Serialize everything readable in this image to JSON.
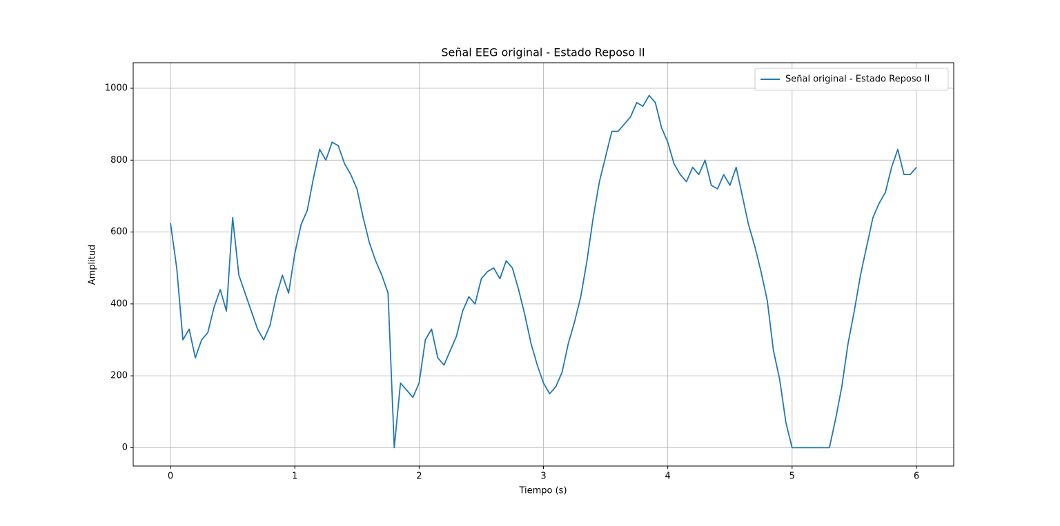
{
  "chart_data": {
    "type": "line",
    "title": "Señal EEG original - Estado Reposo II",
    "xlabel": "Tiempo (s)",
    "ylabel": "Amplitud",
    "x": [
      0,
      0.05,
      0.1,
      0.15,
      0.2,
      0.25,
      0.3,
      0.35,
      0.4,
      0.45,
      0.5,
      0.55,
      0.6,
      0.65,
      0.7,
      0.75,
      0.8,
      0.85,
      0.9,
      0.95,
      1,
      1.05,
      1.1,
      1.15,
      1.2,
      1.25,
      1.3,
      1.35,
      1.4,
      1.45,
      1.5,
      1.55,
      1.6,
      1.65,
      1.7,
      1.75,
      1.8,
      1.85,
      1.9,
      1.95,
      2,
      2.05,
      2.1,
      2.15,
      2.2,
      2.25,
      2.3,
      2.35,
      2.4,
      2.45,
      2.5,
      2.55,
      2.6,
      2.65,
      2.7,
      2.75,
      2.8,
      2.85,
      2.9,
      2.95,
      3,
      3.05,
      3.1,
      3.15,
      3.2,
      3.25,
      3.3,
      3.35,
      3.4,
      3.45,
      3.5,
      3.55,
      3.6,
      3.65,
      3.7,
      3.75,
      3.8,
      3.85,
      3.9,
      3.95,
      4,
      4.05,
      4.1,
      4.15,
      4.2,
      4.25,
      4.3,
      4.35,
      4.4,
      4.45,
      4.5,
      4.55,
      4.6,
      4.65,
      4.7,
      4.75,
      4.8,
      4.85,
      4.9,
      4.95,
      5,
      5.05,
      5.1,
      5.15,
      5.2,
      5.25,
      5.3,
      5.35,
      5.4,
      5.45,
      5.5,
      5.55,
      5.6,
      5.65,
      5.7,
      5.75,
      5.8,
      5.85,
      5.9,
      5.95,
      6
    ],
    "series": [
      {
        "name": "Señal original - Estado Reposo II",
        "color": "#1f77b4",
        "values": [
          625,
          500,
          300,
          330,
          250,
          300,
          320,
          390,
          440,
          380,
          640,
          480,
          430,
          380,
          330,
          300,
          340,
          420,
          480,
          430,
          540,
          620,
          660,
          750,
          830,
          800,
          850,
          840,
          790,
          760,
          720,
          640,
          570,
          520,
          480,
          430,
          0,
          180,
          160,
          140,
          180,
          300,
          330,
          250,
          230,
          270,
          310,
          380,
          420,
          400,
          470,
          490,
          500,
          470,
          520,
          500,
          440,
          370,
          290,
          230,
          180,
          150,
          170,
          210,
          290,
          350,
          420,
          520,
          640,
          740,
          810,
          880,
          880,
          900,
          920,
          960,
          950,
          980,
          960,
          890,
          850,
          790,
          760,
          740,
          780,
          760,
          800,
          730,
          720,
          760,
          730,
          780,
          700,
          620,
          560,
          490,
          410,
          270,
          190,
          70,
          0,
          0,
          0,
          0,
          0,
          0,
          0,
          80,
          170,
          290,
          380,
          480,
          560,
          640,
          680,
          710,
          780,
          830,
          760,
          760,
          780
        ]
      }
    ],
    "xlim": [
      -0.3,
      6.3
    ],
    "ylim": [
      -51,
      1071
    ],
    "xticks": [
      0,
      1,
      2,
      3,
      4,
      5,
      6
    ],
    "yticks": [
      0,
      200,
      400,
      600,
      800,
      1000
    ],
    "grid": true,
    "legend": "upper right"
  }
}
